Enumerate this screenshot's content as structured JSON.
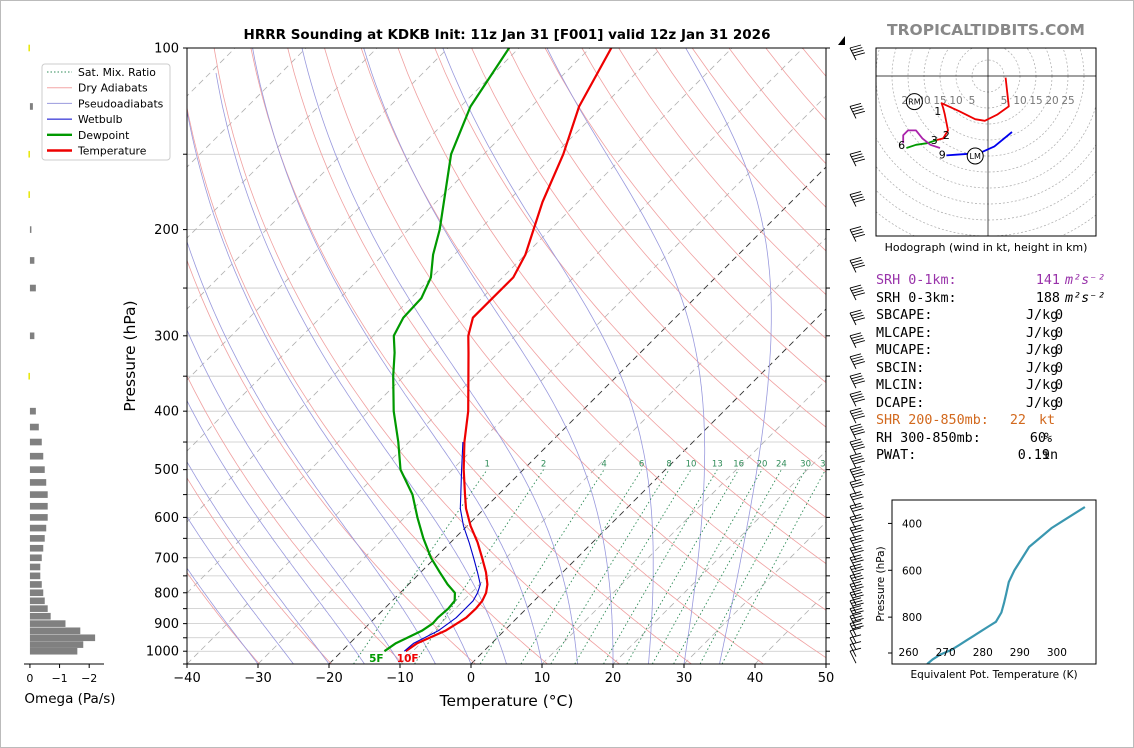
{
  "header": {
    "title": "HRRR Sounding at KDKB Init: 11z Jan 31 [F001] valid 12z Jan 31 2026",
    "watermark": "TROPICALTIDBITS.COM"
  },
  "chart_data": [
    {
      "type": "line",
      "name": "skewt",
      "title": "HRRR Sounding at KDKB Init: 11z Jan 31 [F001] valid 12z Jan 31 2026",
      "xlabel": "Temperature (°C)",
      "ylabel": "Pressure (hPa)",
      "xlim": [
        -40,
        50
      ],
      "ylim": [
        1050,
        100
      ],
      "y_scale": "log",
      "x_ticks": [
        -40,
        -30,
        -20,
        -10,
        0,
        10,
        20,
        30,
        40,
        50
      ],
      "x_tick_labels": [
        "−40",
        "−30",
        "−20",
        "−10",
        "0",
        "10",
        "20",
        "30",
        "40",
        "50"
      ],
      "y_ticks": [
        100,
        200,
        300,
        400,
        500,
        600,
        700,
        800,
        900,
        1000
      ],
      "y_tick_labels": [
        "100",
        "200",
        "300",
        "400",
        "500",
        "600",
        "700",
        "800",
        "900",
        "1000"
      ],
      "legend_position": "top-left",
      "legend": [
        {
          "label": "Sat. Mix. Ratio",
          "color": "#2e8b57",
          "style": "dotted"
        },
        {
          "label": "Dry Adiabats",
          "color": "#f4a5a5",
          "style": "solid"
        },
        {
          "label": "Pseudoadiabats",
          "color": "#9999dd",
          "style": "solid"
        },
        {
          "label": "Wetbulb",
          "color": "#0000cc",
          "style": "solid"
        },
        {
          "label": "Dewpoint",
          "color": "#009900",
          "style": "solid"
        },
        {
          "label": "Temperature",
          "color": "#ee0000",
          "style": "solid"
        }
      ],
      "mixing_ratio_labels": [
        "1",
        "2",
        "4",
        "6",
        "8",
        "10",
        "13",
        "16",
        "20",
        "24",
        "30",
        "36"
      ],
      "mixing_ratio_values": [
        1,
        2,
        4,
        6,
        8,
        10,
        13,
        16,
        20,
        24,
        30,
        36
      ],
      "surface_labels": {
        "dewpoint": "5F",
        "temperature": "10F"
      },
      "series": [
        {
          "name": "Temperature",
          "color": "#ee0000",
          "p": [
            1000,
            970,
            925,
            880,
            850,
            825,
            800,
            775,
            740,
            700,
            660,
            620,
            580,
            550,
            500,
            450,
            400,
            350,
            320,
            300,
            280,
            260,
            240,
            220,
            180,
            150,
            125,
            100
          ],
          "t": [
            -11,
            -10.5,
            -8.3,
            -7.2,
            -7.1,
            -7.3,
            -7.9,
            -8.9,
            -10.8,
            -13.4,
            -16.2,
            -19.5,
            -22.6,
            -24.7,
            -28.4,
            -32.2,
            -36,
            -40.9,
            -44.2,
            -46.6,
            -48.5,
            -48.5,
            -48.5,
            -50,
            -55,
            -58.8,
            -63.3,
            -67
          ]
        },
        {
          "name": "Wetbulb",
          "color": "#0000cc",
          "p": [
            1000,
            970,
            925,
            880,
            850,
            825,
            800,
            775,
            740,
            700,
            660,
            620,
            580,
            550,
            500,
            450
          ],
          "t": [
            -11.2,
            -11,
            -9.3,
            -8.6,
            -8.6,
            -8.6,
            -9.1,
            -9.9,
            -12,
            -14.6,
            -17.4,
            -20.5,
            -23.4,
            -25.3,
            -28.7,
            -32.4
          ]
        },
        {
          "name": "Dewpoint",
          "color": "#009900",
          "p": [
            1000,
            970,
            925,
            900,
            880,
            850,
            825,
            800,
            775,
            740,
            700,
            650,
            600,
            550,
            500,
            450,
            400,
            350,
            320,
            300,
            280,
            260,
            240,
            220,
            200,
            150,
            125,
            100
          ],
          "t": [
            -14,
            -13.5,
            -11.6,
            -11.1,
            -11.2,
            -11,
            -11.2,
            -12.3,
            -14.5,
            -17.3,
            -20.6,
            -24.4,
            -28.2,
            -32.1,
            -37.3,
            -41.5,
            -46.5,
            -51.5,
            -54.6,
            -57.1,
            -58.3,
            -58.5,
            -60.1,
            -63,
            -65.6,
            -74.6,
            -78.6,
            -81.4
          ]
        }
      ]
    },
    {
      "type": "bar",
      "name": "omega",
      "xlabel": "Omega (Pa/s)",
      "xlim": [
        0.2,
        -2.5
      ],
      "x_ticks": [
        0,
        -1,
        -2
      ],
      "x_tick_labels": [
        "0",
        "−1",
        "−2"
      ],
      "ylim": [
        1050,
        100
      ],
      "y_scale": "log",
      "p": [
        1000,
        975,
        950,
        925,
        900,
        875,
        850,
        825,
        800,
        775,
        750,
        725,
        700,
        675,
        650,
        625,
        600,
        575,
        550,
        525,
        500,
        475,
        450,
        425,
        400,
        350,
        300,
        250,
        225,
        200,
        175,
        150,
        125,
        100
      ],
      "values": [
        -1.6,
        -1.8,
        -2.2,
        -1.7,
        -1.2,
        -0.7,
        -0.6,
        -0.5,
        -0.45,
        -0.4,
        -0.35,
        -0.35,
        -0.4,
        -0.45,
        -0.5,
        -0.55,
        -0.6,
        -0.6,
        -0.6,
        -0.55,
        -0.5,
        -0.45,
        -0.4,
        -0.3,
        -0.2,
        0.05,
        -0.15,
        -0.2,
        -0.15,
        -0.05,
        0.05,
        0.05,
        -0.1,
        0.05
      ]
    },
    {
      "type": "line",
      "name": "hodograph",
      "xlabel": "Hodograph (wind in kt, height in km)",
      "ring_labels": [
        "25",
        "20",
        "15",
        "10",
        "5",
        "5",
        "10",
        "15",
        "20",
        "25"
      ],
      "ring_values": [
        -25,
        -20,
        -15,
        -10,
        -5,
        5,
        10,
        15,
        20,
        25
      ],
      "markers": [
        {
          "label": "RM",
          "u": -23,
          "v": -8
        },
        {
          "label": "LM",
          "u": -4,
          "v": -25
        }
      ],
      "height_labels": [
        {
          "label": "1",
          "u": -15.7,
          "v": -11
        },
        {
          "label": "2",
          "u": -13,
          "v": -18.5
        },
        {
          "label": "3",
          "u": -16.8,
          "v": -20
        },
        {
          "label": "6",
          "u": -27,
          "v": -21.5
        },
        {
          "label": "9",
          "u": -14.3,
          "v": -24.5
        }
      ],
      "segments": [
        {
          "color": "#0000ee",
          "points": [
            [
              7.5,
              -17.5
            ],
            [
              2,
              -22
            ],
            [
              -2,
              -23.8
            ],
            [
              -6,
              -24.3
            ],
            [
              -10,
              -24.6
            ],
            [
              -13,
              -24.8
            ]
          ]
        },
        {
          "color": "#ee0000",
          "points": [
            [
              5.5,
              -0.5
            ],
            [
              6,
              -5
            ],
            [
              6.5,
              -9.5
            ],
            [
              3,
              -12
            ],
            [
              -1,
              -14
            ],
            [
              -4,
              -13.5
            ],
            [
              -9,
              -11
            ],
            [
              -14.5,
              -8.5
            ],
            [
              -14,
              -10
            ],
            [
              -13.5,
              -12
            ],
            [
              -13,
              -14.5
            ],
            [
              -12.5,
              -17
            ],
            [
              -14,
              -19.5
            ],
            [
              -16,
              -20
            ]
          ]
        },
        {
          "color": "#009900",
          "points": [
            [
              -16,
              -20
            ],
            [
              -19,
              -21
            ],
            [
              -22.5,
              -21.5
            ],
            [
              -25.5,
              -22.5
            ]
          ]
        },
        {
          "color": "#aa22aa",
          "points": [
            [
              -15,
              -22.5
            ],
            [
              -18,
              -21.5
            ],
            [
              -20.5,
              -19.5
            ],
            [
              -22.5,
              -17
            ],
            [
              -25,
              -17
            ],
            [
              -26.5,
              -18.5
            ],
            [
              -26.5,
              -21
            ]
          ]
        }
      ]
    },
    {
      "type": "line",
      "name": "theta-e",
      "xlabel": "Equivalent Pot. Temperature (K)",
      "ylabel": "Pressure (hPa)",
      "xlim": [
        255,
        310
      ],
      "ylim": [
        1000,
        300
      ],
      "x_ticks": [
        260,
        270,
        280,
        290,
        300
      ],
      "x_tick_labels": [
        "260",
        "270",
        "280",
        "290",
        "300"
      ],
      "y_ticks": [
        400,
        600,
        800
      ],
      "y_tick_labels": [
        "400",
        "600",
        "800"
      ],
      "x": [
        264.5,
        266,
        268,
        271,
        273,
        275,
        277,
        279,
        281,
        283,
        284.5,
        285.2,
        285.8,
        286.5,
        288,
        290,
        292,
        295,
        298,
        301,
        304,
        307
      ],
      "y": [
        1000,
        980,
        960,
        940,
        920,
        900,
        880,
        860,
        840,
        820,
        780,
        740,
        700,
        650,
        600,
        550,
        500,
        460,
        420,
        390,
        360,
        330
      ]
    }
  ],
  "stats": [
    {
      "label": "SRH 0-1km:",
      "value": "141",
      "unit": "m²s⁻²",
      "color": "#9933aa"
    },
    {
      "label": "SRH 0-3km:",
      "value": "188",
      "unit": "m²s⁻²",
      "color": "#000000"
    },
    {
      "label": "SBCAPE:",
      "value": "0",
      "unit": "J/kg",
      "color": "#000000"
    },
    {
      "label": "MLCAPE:",
      "value": "0",
      "unit": "J/kg",
      "color": "#000000"
    },
    {
      "label": "MUCAPE:",
      "value": "0",
      "unit": "J/kg",
      "color": "#000000"
    },
    {
      "label": "SBCIN:",
      "value": "0",
      "unit": "J/kg",
      "color": "#000000"
    },
    {
      "label": "MLCIN:",
      "value": "0",
      "unit": "J/kg",
      "color": "#000000"
    },
    {
      "label": "DCAPE:",
      "value": "0",
      "unit": "J/kg",
      "color": "#000000"
    },
    {
      "label": "SHR 200-850mb:",
      "value": "22",
      "unit": "kt",
      "color": "#d2691e"
    },
    {
      "label": "RH 300-850mb:",
      "value": "60",
      "unit": "%",
      "color": "#000000"
    },
    {
      "label": "PWAT:",
      "value": "0.19",
      "unit": "in",
      "color": "#000000"
    }
  ]
}
